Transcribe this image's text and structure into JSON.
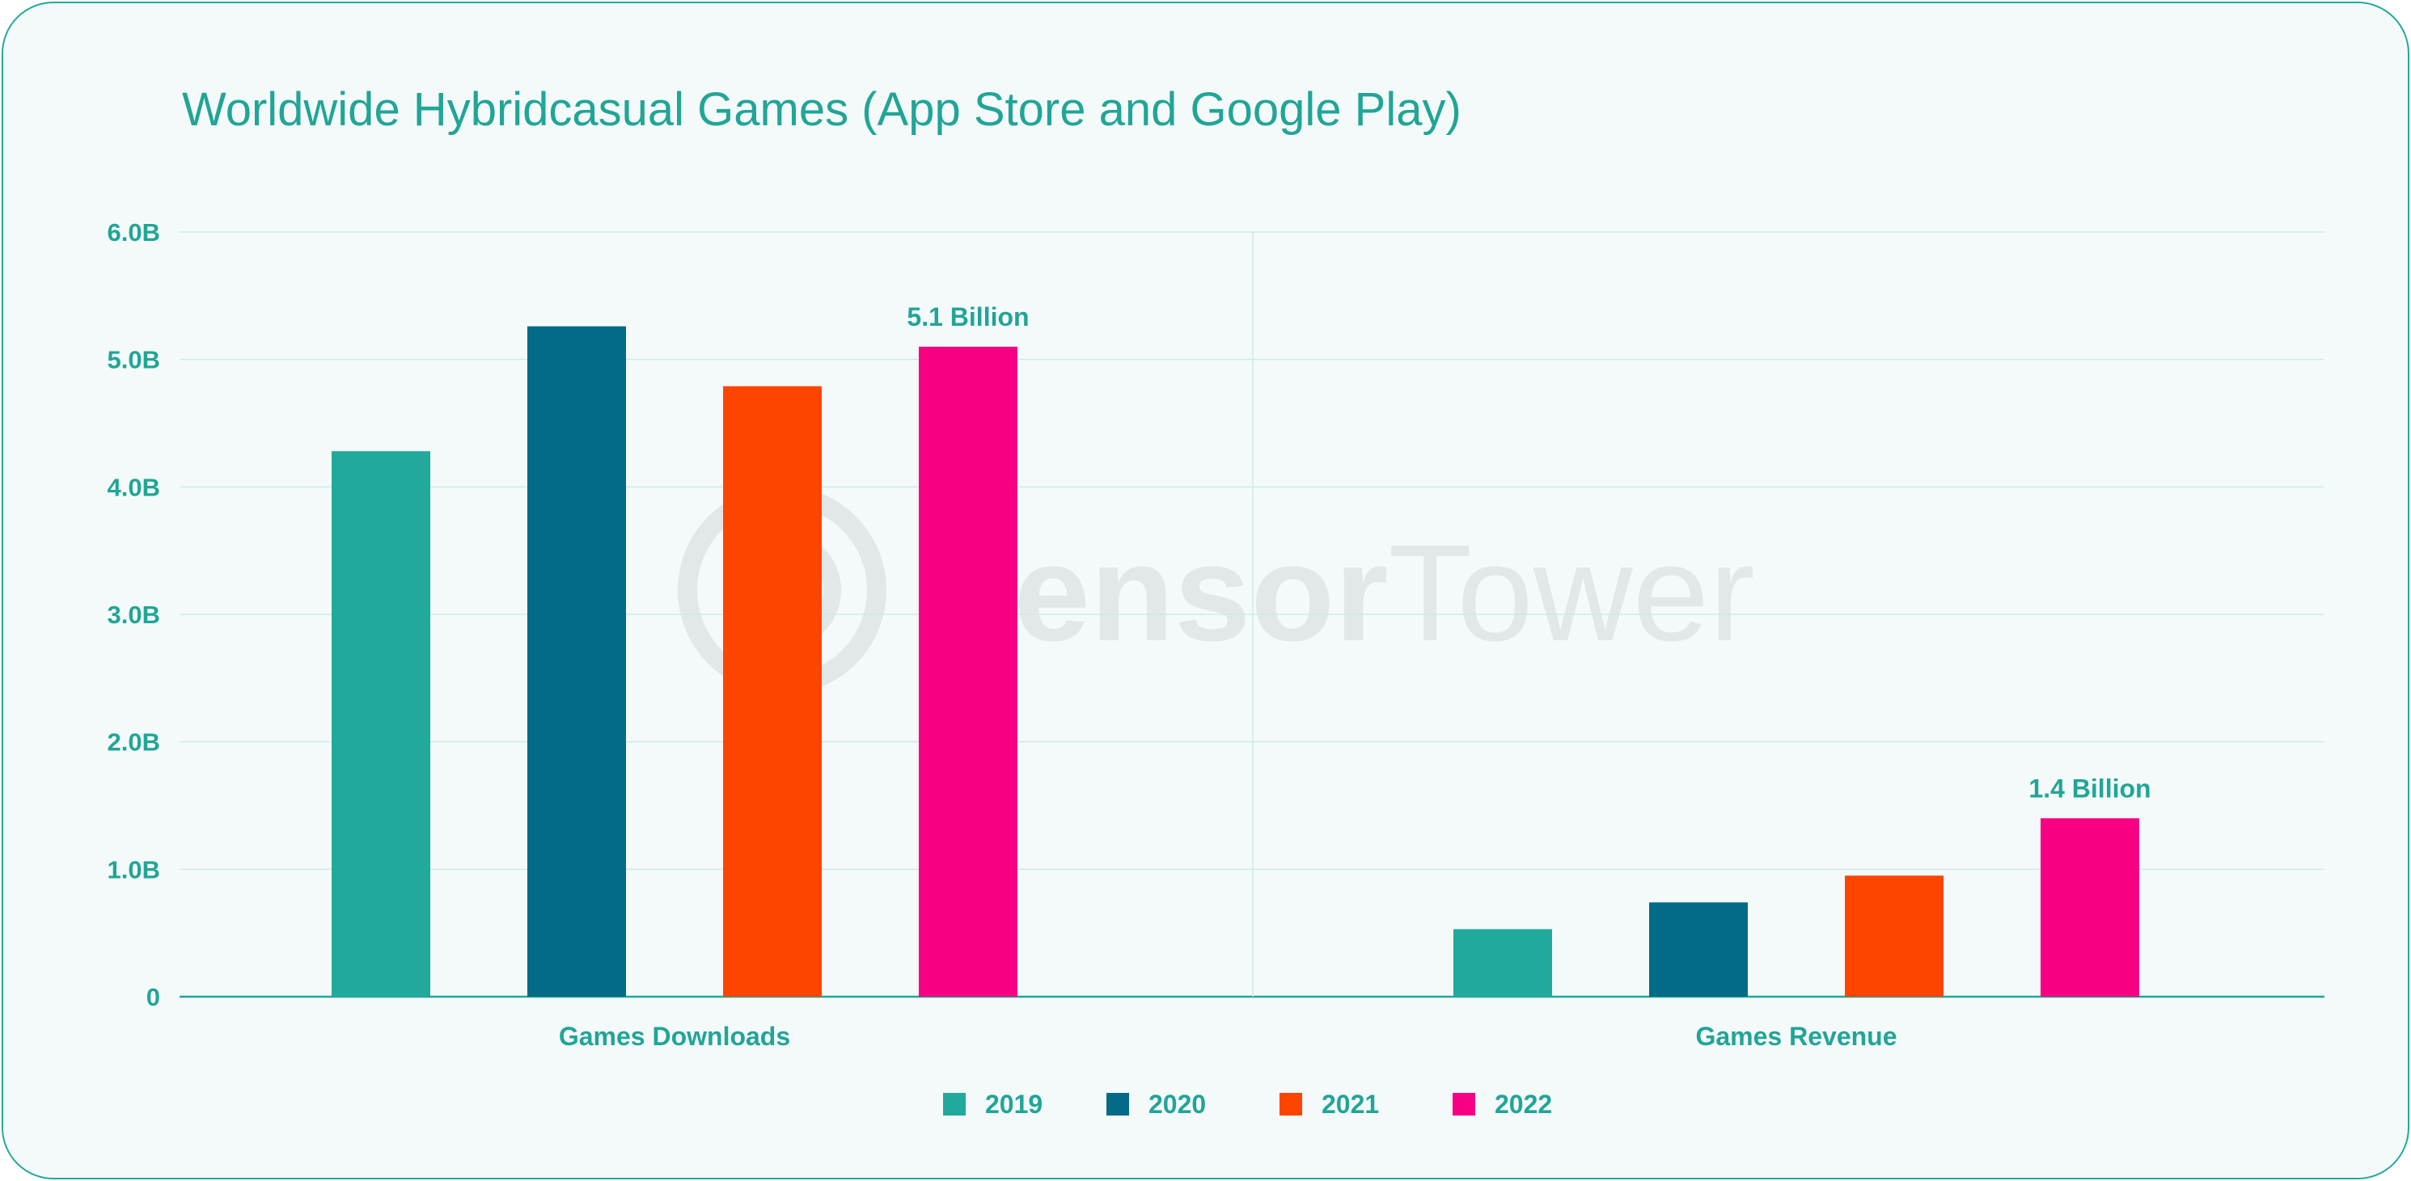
{
  "colors": {
    "accent": "#21a597",
    "background": "#f4fafa",
    "gridline": "#cfe9e6",
    "series": [
      "#21aa9b",
      "#036b88",
      "#fe4500",
      "#f80082"
    ]
  },
  "watermark": {
    "icon": "sensor-tower-logo-icon",
    "bold": "Sensor",
    "light": "Tower"
  },
  "chart_data": {
    "type": "bar",
    "title": "Worldwide Hybridcasual Games (App Store and Google Play)",
    "xlabel": "",
    "ylabel": "",
    "ylim": [
      0,
      6
    ],
    "yticks": [
      {
        "value": 0,
        "label": "0"
      },
      {
        "value": 1,
        "label": "1.0B"
      },
      {
        "value": 2,
        "label": "2.0B"
      },
      {
        "value": 3,
        "label": "3.0B"
      },
      {
        "value": 4,
        "label": "4.0B"
      },
      {
        "value": 5,
        "label": "5.0B"
      },
      {
        "value": 6,
        "label": "6.0B"
      }
    ],
    "categories": [
      "Games Downloads",
      "Games Revenue"
    ],
    "series": [
      {
        "name": "2019",
        "values": [
          4.28,
          0.53
        ]
      },
      {
        "name": "2020",
        "values": [
          5.26,
          0.74
        ]
      },
      {
        "name": "2021",
        "values": [
          4.79,
          0.95
        ]
      },
      {
        "name": "2022",
        "values": [
          5.1,
          1.4
        ]
      }
    ],
    "annotations": [
      {
        "category": "Games Downloads",
        "series": "2022",
        "text": "5.1 Billion"
      },
      {
        "category": "Games Revenue",
        "series": "2022",
        "text": "1.4 Billion"
      }
    ],
    "grid": true,
    "legend_position": "bottom-center"
  }
}
